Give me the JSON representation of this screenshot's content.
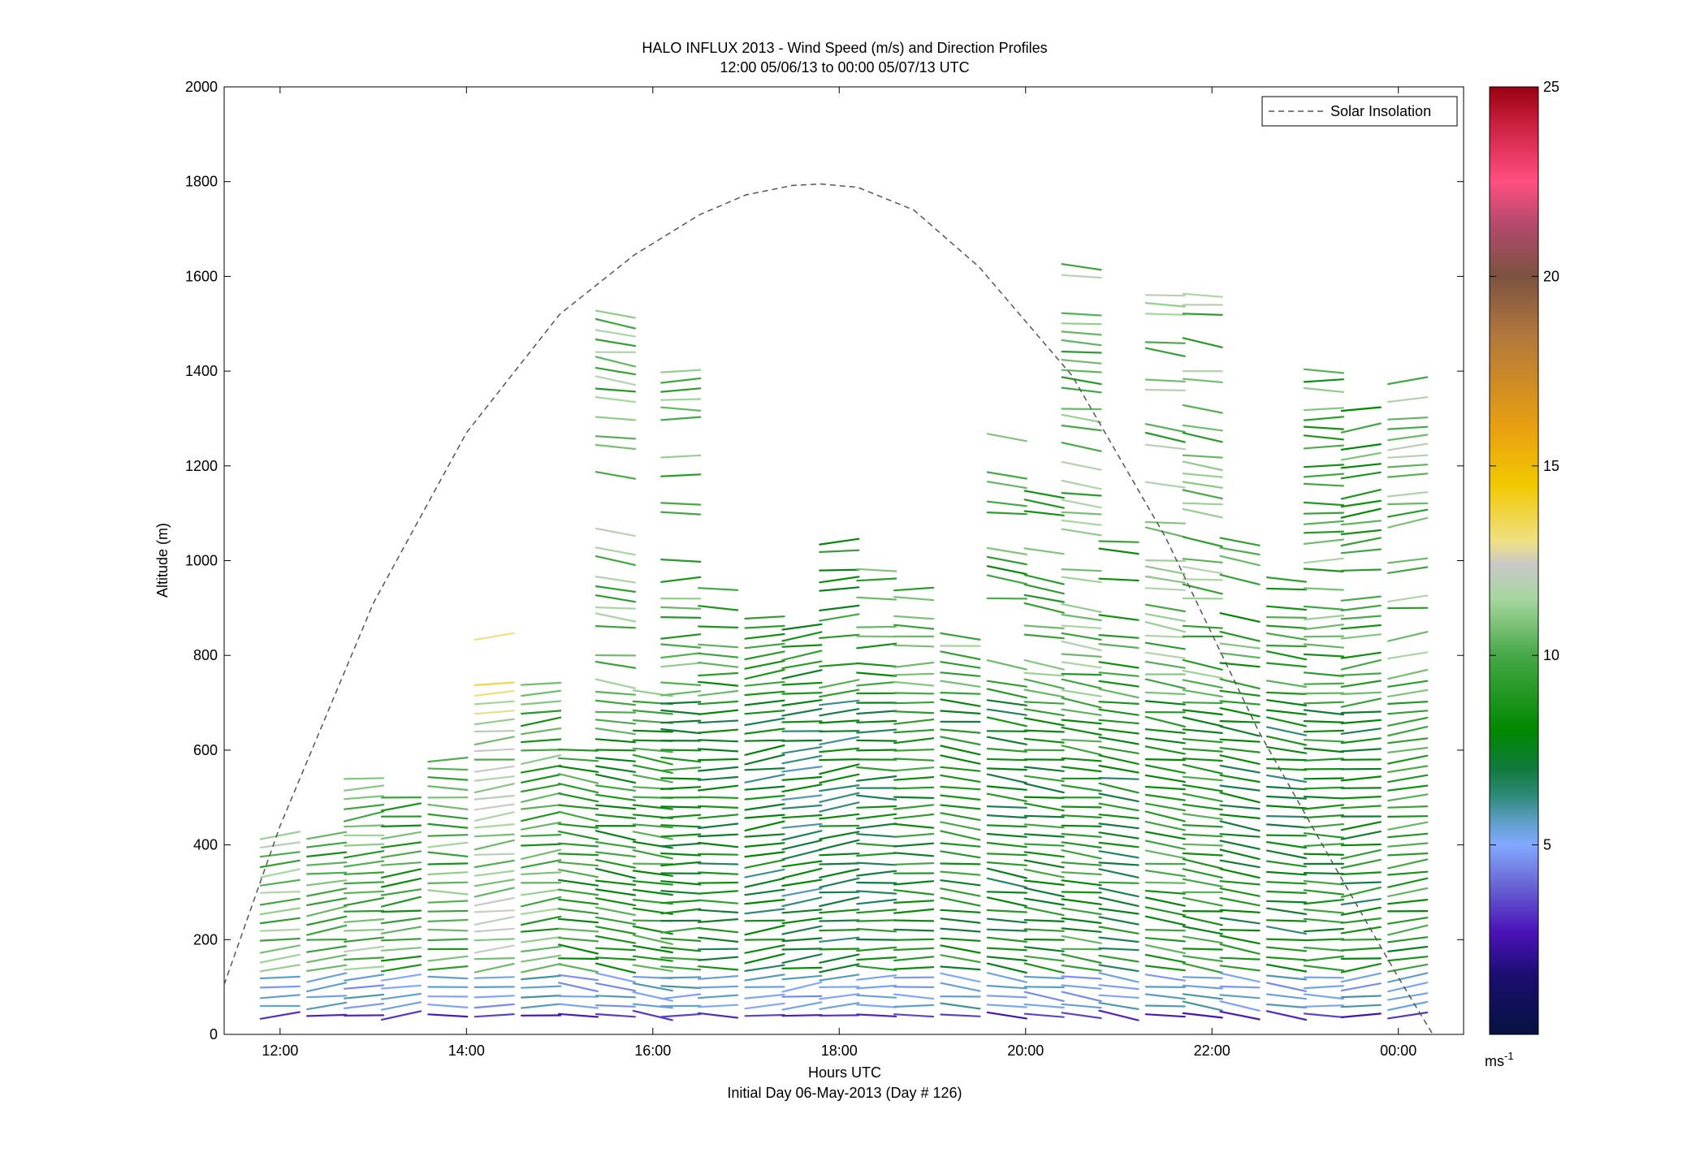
{
  "chart_data": {
    "type": "scatter",
    "title": "HALO INFLUX 2013 - Wind Speed (m/s) and Direction Profiles",
    "subtitle": "12:00 05/06/13 to 00:00 05/07/13  UTC",
    "xlabel": "Hours UTC",
    "xlabel2": "Initial Day 06-May-2013 (Day # 126)",
    "ylabel": "Altitude (m)",
    "xlim": [
      11.4,
      24.7
    ],
    "ylim": [
      0,
      2000
    ],
    "x_ticks": [
      12,
      14,
      16,
      18,
      20,
      22,
      24
    ],
    "x_tick_labels": [
      "12:00",
      "14:00",
      "16:00",
      "18:00",
      "20:00",
      "22:00",
      "00:00"
    ],
    "y_ticks": [
      0,
      200,
      400,
      600,
      800,
      1000,
      1200,
      1400,
      1600,
      1800,
      2000
    ],
    "y_tick_labels": [
      "0",
      "200",
      "400",
      "600",
      "800",
      "1000",
      "1200",
      "1400",
      "1600",
      "1800",
      "2000"
    ],
    "legend": {
      "entries": [
        "Solar Insolation"
      ],
      "placement": "top-right"
    },
    "colorbar": {
      "range": [
        0,
        25
      ],
      "ticks": [
        5,
        10,
        15,
        20,
        25
      ],
      "tick_labels": [
        "5",
        "10",
        "15",
        "20",
        "25"
      ],
      "unit_label": "ms",
      "unit_exponent": "-1",
      "stops": [
        {
          "v": 0,
          "c": "#061340"
        },
        {
          "v": 1.5,
          "c": "#1a0e6e"
        },
        {
          "v": 2.7,
          "c": "#4a12b8"
        },
        {
          "v": 4.0,
          "c": "#6a6ad6"
        },
        {
          "v": 5.0,
          "c": "#82a8ff"
        },
        {
          "v": 5.6,
          "c": "#5f9fc8"
        },
        {
          "v": 6.3,
          "c": "#2e8a78"
        },
        {
          "v": 7.0,
          "c": "#117a3d"
        },
        {
          "v": 8.0,
          "c": "#008800"
        },
        {
          "v": 10.0,
          "c": "#46a846"
        },
        {
          "v": 11.5,
          "c": "#a8d6a0"
        },
        {
          "v": 12.4,
          "c": "#c8c8c8"
        },
        {
          "v": 13.0,
          "c": "#efe085"
        },
        {
          "v": 14.5,
          "c": "#f2c800"
        },
        {
          "v": 16.0,
          "c": "#e9a010"
        },
        {
          "v": 18.5,
          "c": "#b0763c"
        },
        {
          "v": 20.0,
          "c": "#7c5340"
        },
        {
          "v": 21.3,
          "c": "#b04a6a"
        },
        {
          "v": 22.5,
          "c": "#ff4f80"
        },
        {
          "v": 24.0,
          "c": "#cc2040"
        },
        {
          "v": 25.0,
          "c": "#990010"
        }
      ]
    },
    "solar_insolation_curve": {
      "x": [
        11.4,
        12.0,
        13.0,
        14.0,
        15.0,
        15.8,
        16.5,
        17.0,
        17.5,
        17.8,
        18.2,
        18.8,
        19.5,
        20.5,
        21.5,
        22.5,
        23.3,
        24.0,
        24.37
      ],
      "y": [
        105,
        440,
        910,
        1270,
        1520,
        1645,
        1730,
        1772,
        1792,
        1795,
        1788,
        1740,
        1620,
        1390,
        1050,
        640,
        360,
        120,
        0
      ]
    },
    "wind_profiles": [
      {
        "x": 12.0,
        "z_max": 430,
        "mean_speed": 10.5,
        "lean": -1
      },
      {
        "x": 12.5,
        "z_max": 430,
        "mean_speed": 10.0,
        "lean": -1
      },
      {
        "x": 12.9,
        "z_max": 550,
        "mean_speed": 10.5,
        "lean": -1
      },
      {
        "x": 13.3,
        "z_max": 500,
        "mean_speed": 9.5,
        "lean": -1
      },
      {
        "x": 13.8,
        "z_max": 590,
        "mean_speed": 10.0,
        "lean": 0
      },
      {
        "x": 14.3,
        "z_max": 870,
        "mean_speed": 11.5,
        "lean": -1
      },
      {
        "x": 14.8,
        "z_max": 760,
        "mean_speed": 10.0,
        "lean": -1
      },
      {
        "x": 15.2,
        "z_max": 600,
        "mean_speed": 9.0,
        "lean": 1
      },
      {
        "x": 15.6,
        "z_max": 1570,
        "mean_speed": 9.0,
        "lean": 1
      },
      {
        "x": 16.0,
        "z_max": 730,
        "mean_speed": 9.0,
        "lean": 1
      },
      {
        "x": 16.3,
        "z_max": 1400,
        "mean_speed": 8.5,
        "lean": 0
      },
      {
        "x": 16.7,
        "z_max": 950,
        "mean_speed": 8.0,
        "lean": 0
      },
      {
        "x": 17.2,
        "z_max": 940,
        "mean_speed": 7.5,
        "lean": -1
      },
      {
        "x": 17.6,
        "z_max": 870,
        "mean_speed": 7.0,
        "lean": -1
      },
      {
        "x": 18.0,
        "z_max": 1050,
        "mean_speed": 7.5,
        "lean": -1
      },
      {
        "x": 18.4,
        "z_max": 980,
        "mean_speed": 8.0,
        "lean": 0
      },
      {
        "x": 18.8,
        "z_max": 950,
        "mean_speed": 8.5,
        "lean": 0
      },
      {
        "x": 19.3,
        "z_max": 840,
        "mean_speed": 8.5,
        "lean": 1
      },
      {
        "x": 19.8,
        "z_max": 1260,
        "mean_speed": 8.0,
        "lean": 1
      },
      {
        "x": 20.2,
        "z_max": 1140,
        "mean_speed": 8.5,
        "lean": 1
      },
      {
        "x": 20.6,
        "z_max": 1640,
        "mean_speed": 9.0,
        "lean": 1
      },
      {
        "x": 21.0,
        "z_max": 1060,
        "mean_speed": 8.0,
        "lean": 1
      },
      {
        "x": 21.5,
        "z_max": 1570,
        "mean_speed": 9.0,
        "lean": 1
      },
      {
        "x": 21.9,
        "z_max": 1570,
        "mean_speed": 9.0,
        "lean": 1
      },
      {
        "x": 22.3,
        "z_max": 1060,
        "mean_speed": 8.0,
        "lean": 1
      },
      {
        "x": 22.8,
        "z_max": 960,
        "mean_speed": 7.5,
        "lean": 1
      },
      {
        "x": 23.2,
        "z_max": 1400,
        "mean_speed": 8.5,
        "lean": 0
      },
      {
        "x": 23.6,
        "z_max": 1320,
        "mean_speed": 8.0,
        "lean": -1
      },
      {
        "x": 24.1,
        "z_max": 1400,
        "mean_speed": 9.0,
        "lean": -1
      }
    ],
    "grid": false
  }
}
